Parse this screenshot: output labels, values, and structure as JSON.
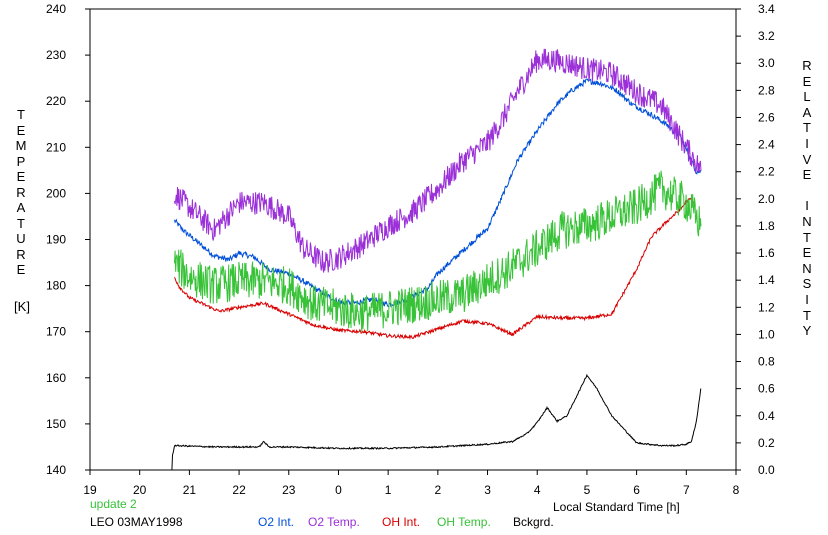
{
  "chart_data": {
    "type": "line",
    "xlabel": "Local Standard Time [h]",
    "ylabel_left_letters": [
      "T",
      "E",
      "M",
      "P",
      "E",
      "R",
      "A",
      "T",
      "U",
      "R",
      "E"
    ],
    "ylabel_left_unit": "[K]",
    "ylabel_right_letters": [
      "R",
      "E",
      "L",
      "A",
      "T",
      "I",
      "V",
      "E",
      "",
      "I",
      "N",
      "T",
      "E",
      "N",
      "S",
      "I",
      "T",
      "Y"
    ],
    "x_ticks": [
      "19",
      "20",
      "21",
      "22",
      "23",
      "0",
      "1",
      "2",
      "3",
      "4",
      "5",
      "6",
      "7",
      "8"
    ],
    "x_range": [
      19,
      32
    ],
    "y_left_ticks": [
      "140",
      "150",
      "160",
      "170",
      "180",
      "190",
      "200",
      "210",
      "220",
      "230",
      "240"
    ],
    "y_left_range": [
      140,
      240
    ],
    "y_right_ticks": [
      "0.0",
      "0.2",
      "0.4",
      "0.6",
      "0.8",
      "1.0",
      "1.2",
      "1.4",
      "1.6",
      "1.8",
      "2.0",
      "2.2",
      "2.4",
      "2.6",
      "2.8",
      "3.0",
      "3.2",
      "3.4"
    ],
    "y_right_range": [
      0,
      3.4
    ],
    "grid": false,
    "series": [
      {
        "name": "O2 Int.",
        "color": "#0050d8",
        "axis": "right",
        "noise": 0.02,
        "x": [
          20.7,
          20.9,
          21.2,
          21.5,
          21.8,
          22.0,
          22.3,
          22.6,
          23.0,
          23.3,
          23.7,
          24.0,
          24.3,
          24.7,
          25.0,
          25.4,
          25.8,
          26.0,
          26.3,
          26.6,
          27.0,
          27.3,
          27.6,
          28.0,
          28.4,
          28.7,
          29.0,
          29.3,
          29.6,
          29.9,
          30.3,
          30.6,
          30.9,
          31.2,
          31.3
        ],
        "y": [
          1.84,
          1.76,
          1.67,
          1.58,
          1.55,
          1.6,
          1.57,
          1.48,
          1.45,
          1.39,
          1.3,
          1.24,
          1.23,
          1.26,
          1.22,
          1.26,
          1.34,
          1.45,
          1.55,
          1.65,
          1.78,
          2.02,
          2.28,
          2.5,
          2.7,
          2.8,
          2.87,
          2.85,
          2.8,
          2.7,
          2.62,
          2.55,
          2.45,
          2.2,
          2.2
        ]
      },
      {
        "name": "O2 Temp.",
        "color": "#9b30d8",
        "axis": "left",
        "noise": 2.6,
        "x": [
          20.7,
          21.0,
          21.5,
          22.0,
          22.5,
          23.0,
          23.3,
          23.7,
          24.0,
          24.5,
          25.0,
          25.5,
          26.0,
          26.5,
          27.0,
          27.3,
          27.6,
          28.0,
          28.3,
          28.7,
          29.0,
          29.5,
          30.0,
          30.5,
          31.0,
          31.3
        ],
        "y": [
          200,
          197,
          192,
          198,
          198,
          195,
          188,
          185,
          186,
          189,
          193,
          196,
          201,
          207,
          211,
          216,
          222,
          229,
          229,
          228,
          227,
          226,
          222,
          219,
          210,
          205
        ]
      },
      {
        "name": "OH Int.",
        "color": "#d80000",
        "axis": "right",
        "noise": 0.012,
        "x": [
          20.7,
          20.8,
          21.0,
          21.3,
          21.6,
          22.0,
          22.5,
          23.0,
          23.5,
          24.0,
          24.5,
          25.0,
          25.5,
          26.0,
          26.5,
          27.0,
          27.5,
          28.0,
          28.5,
          29.0,
          29.5,
          30.0,
          30.3,
          30.6,
          30.9,
          31.0,
          31.1,
          31.2
        ],
        "y": [
          1.42,
          1.35,
          1.27,
          1.22,
          1.17,
          1.2,
          1.23,
          1.15,
          1.07,
          1.03,
          1.02,
          0.99,
          0.98,
          1.04,
          1.1,
          1.08,
          1.0,
          1.13,
          1.12,
          1.12,
          1.15,
          1.48,
          1.72,
          1.83,
          1.93,
          1.98,
          2.0,
          1.95
        ]
      },
      {
        "name": "OH Temp.",
        "color": "#38c238",
        "axis": "left",
        "noise": 4.2,
        "x": [
          20.7,
          21.0,
          21.5,
          22.0,
          22.5,
          23.0,
          23.5,
          24.0,
          24.5,
          25.0,
          25.5,
          26.0,
          26.5,
          27.0,
          27.5,
          28.0,
          28.5,
          29.0,
          29.5,
          30.0,
          30.5,
          31.0,
          31.3
        ],
        "y": [
          185,
          182,
          180,
          181,
          181,
          180,
          176,
          175,
          174,
          175,
          176,
          177,
          178,
          181,
          184,
          188,
          192,
          193,
          195,
          197,
          201,
          198,
          193
        ]
      },
      {
        "name": "Bckgrd.",
        "color": "#000000",
        "axis": "right",
        "noise": 0.005,
        "x": [
          20.0,
          20.6,
          20.7,
          21.5,
          22.4,
          22.5,
          22.6,
          23.0,
          24.0,
          25.0,
          26.0,
          27.0,
          27.5,
          27.8,
          28.0,
          28.2,
          28.4,
          28.6,
          28.8,
          29.0,
          29.2,
          29.5,
          30.0,
          30.5,
          30.8,
          31.0,
          31.1,
          31.2,
          31.3
        ],
        "y": [
          0.0,
          0.0,
          0.18,
          0.17,
          0.17,
          0.21,
          0.17,
          0.17,
          0.16,
          0.16,
          0.17,
          0.19,
          0.21,
          0.27,
          0.35,
          0.46,
          0.36,
          0.4,
          0.55,
          0.7,
          0.6,
          0.4,
          0.2,
          0.18,
          0.18,
          0.19,
          0.21,
          0.35,
          0.62
        ]
      }
    ],
    "annotation": "update 2",
    "footer_label": "LEO 03MAY1998"
  },
  "colors": {
    "update": "#38c238"
  }
}
